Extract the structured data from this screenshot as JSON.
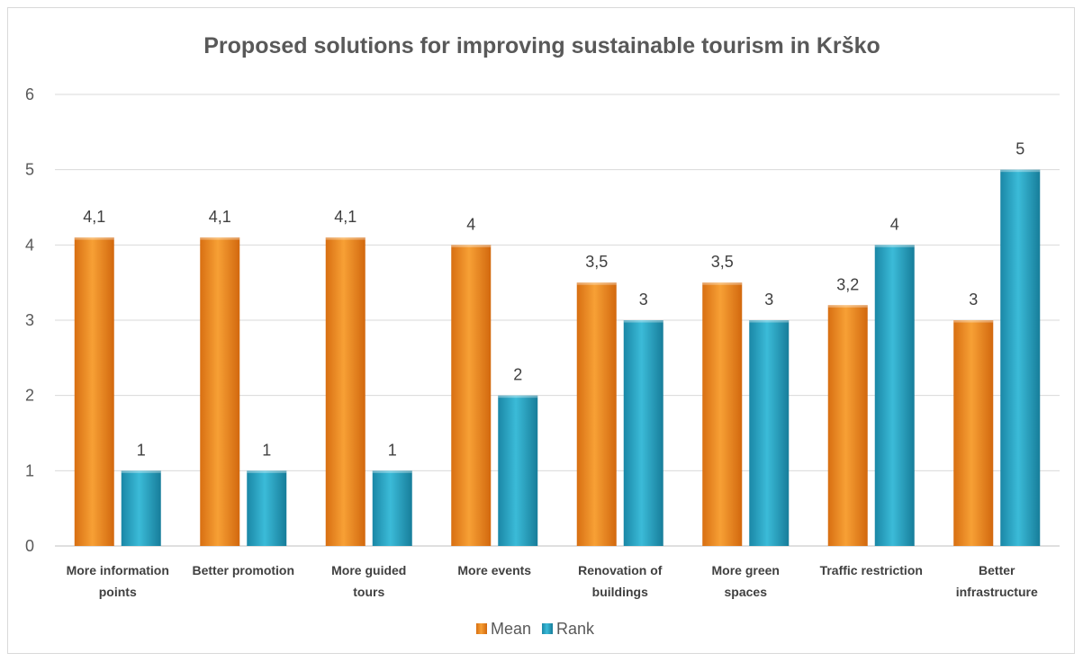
{
  "chart_data": {
    "type": "bar",
    "title": "Proposed solutions for improving sustainable tourism in Krško",
    "xlabel": "",
    "ylabel": "",
    "ylim": [
      0,
      6
    ],
    "yticks": [
      "0",
      "1",
      "2",
      "3",
      "4",
      "5",
      "6"
    ],
    "grid": true,
    "legend_position": "bottom",
    "categories": [
      [
        "More information",
        "points"
      ],
      [
        "Better promotion"
      ],
      [
        "More guided",
        "tours"
      ],
      [
        "More events"
      ],
      [
        "Renovation of",
        "buildings"
      ],
      [
        "More green",
        "spaces"
      ],
      [
        "Traffic restriction"
      ],
      [
        "Better",
        "infrastructure"
      ]
    ],
    "series": [
      {
        "name": "Mean",
        "color": "#f0921f",
        "values": [
          4.1,
          4.1,
          4.1,
          4,
          3.5,
          3.5,
          3.2,
          3
        ],
        "labels": [
          "4,1",
          "4,1",
          "4,1",
          "4",
          "3,5",
          "3,5",
          "3,2",
          "3"
        ]
      },
      {
        "name": "Rank",
        "color": "#2aa8c8",
        "values": [
          1,
          1,
          1,
          2,
          3,
          3,
          4,
          5
        ],
        "labels": [
          "1",
          "1",
          "1",
          "2",
          "3",
          "3",
          "4",
          "5"
        ]
      }
    ]
  }
}
